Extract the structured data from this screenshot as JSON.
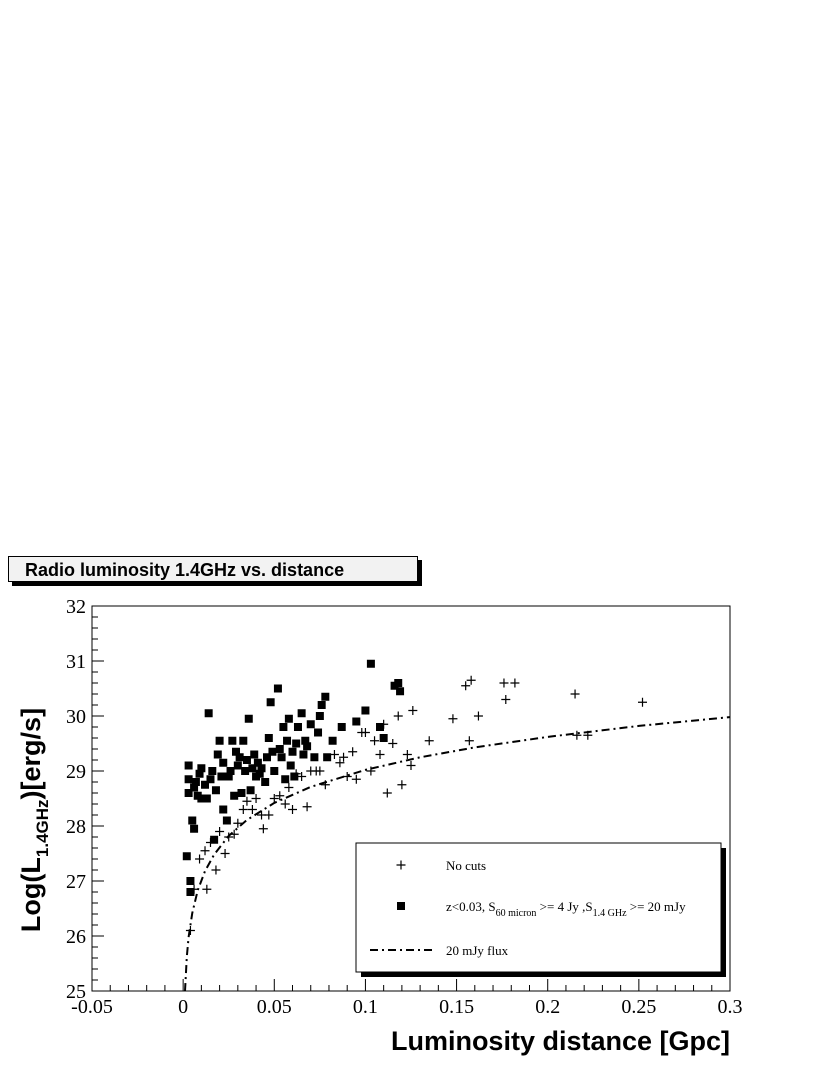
{
  "chart_data": {
    "type": "scatter",
    "title": "Radio luminosity   1.4GHz vs. distance",
    "xlabel": "Luminosity distance [Gpc]",
    "ylabel": {
      "main": "Log(L",
      "sub": "1.4GHz",
      "tail": ")[erg/s]"
    },
    "xlim": [
      -0.05,
      0.3
    ],
    "ylim": [
      25,
      32
    ],
    "x_ticks": [
      "-0.05",
      "0",
      "0.05",
      "0.1",
      "0.15",
      "0.2",
      "0.25",
      "0.3"
    ],
    "y_ticks": [
      "25",
      "26",
      "27",
      "28",
      "29",
      "30",
      "31",
      "32"
    ],
    "grid": false,
    "legend_position": "bottom-right",
    "legend": [
      {
        "marker": "plus",
        "text": "No cuts"
      },
      {
        "marker": "square",
        "parts": [
          "z<0.03, S",
          "60 micron",
          " >= 4 Jy ,S",
          "1.4 GHz",
          " >= 20 mJy"
        ]
      },
      {
        "marker": "dashdot",
        "text": "20 mJy flux"
      }
    ],
    "series": [
      {
        "marker": "plus",
        "points": [
          [
            0.004,
            26.1
          ],
          [
            0.006,
            26.85
          ],
          [
            0.009,
            27.4
          ],
          [
            0.012,
            27.55
          ],
          [
            0.013,
            26.85
          ],
          [
            0.015,
            27.7
          ],
          [
            0.018,
            27.2
          ],
          [
            0.02,
            27.9
          ],
          [
            0.023,
            27.5
          ],
          [
            0.025,
            27.8
          ],
          [
            0.028,
            27.85
          ],
          [
            0.03,
            28.05
          ],
          [
            0.033,
            28.3
          ],
          [
            0.035,
            28.45
          ],
          [
            0.038,
            28.3
          ],
          [
            0.04,
            28.5
          ],
          [
            0.043,
            28.2
          ],
          [
            0.044,
            27.95
          ],
          [
            0.047,
            28.2
          ],
          [
            0.05,
            28.5
          ],
          [
            0.053,
            28.55
          ],
          [
            0.056,
            28.4
          ],
          [
            0.058,
            28.7
          ],
          [
            0.06,
            28.3
          ],
          [
            0.062,
            28.95
          ],
          [
            0.065,
            28.9
          ],
          [
            0.068,
            28.35
          ],
          [
            0.07,
            29.0
          ],
          [
            0.073,
            29.0
          ],
          [
            0.075,
            29.0
          ],
          [
            0.078,
            28.75
          ],
          [
            0.083,
            29.3
          ],
          [
            0.086,
            29.15
          ],
          [
            0.088,
            29.25
          ],
          [
            0.09,
            28.9
          ],
          [
            0.093,
            29.35
          ],
          [
            0.095,
            28.85
          ],
          [
            0.098,
            29.7
          ],
          [
            0.1,
            29.7
          ],
          [
            0.103,
            29.0
          ],
          [
            0.105,
            29.55
          ],
          [
            0.108,
            29.3
          ],
          [
            0.11,
            29.85
          ],
          [
            0.112,
            28.6
          ],
          [
            0.115,
            29.5
          ],
          [
            0.118,
            30.0
          ],
          [
            0.12,
            28.75
          ],
          [
            0.123,
            29.3
          ],
          [
            0.125,
            29.1
          ],
          [
            0.126,
            30.1
          ],
          [
            0.135,
            29.55
          ],
          [
            0.148,
            29.95
          ],
          [
            0.155,
            30.55
          ],
          [
            0.157,
            29.55
          ],
          [
            0.158,
            30.65
          ],
          [
            0.162,
            30.0
          ],
          [
            0.176,
            30.6
          ],
          [
            0.177,
            30.3
          ],
          [
            0.182,
            30.6
          ],
          [
            0.215,
            30.4
          ],
          [
            0.216,
            29.65
          ],
          [
            0.222,
            29.65
          ],
          [
            0.252,
            30.25
          ]
        ]
      },
      {
        "marker": "square",
        "points": [
          [
            0.002,
            27.45
          ],
          [
            0.003,
            28.85
          ],
          [
            0.003,
            28.6
          ],
          [
            0.003,
            29.1
          ],
          [
            0.004,
            27.0
          ],
          [
            0.004,
            26.8
          ],
          [
            0.005,
            28.1
          ],
          [
            0.006,
            27.95
          ],
          [
            0.006,
            28.7
          ],
          [
            0.007,
            28.8
          ],
          [
            0.008,
            28.55
          ],
          [
            0.009,
            28.95
          ],
          [
            0.01,
            29.05
          ],
          [
            0.01,
            28.5
          ],
          [
            0.012,
            28.75
          ],
          [
            0.013,
            28.5
          ],
          [
            0.014,
            30.05
          ],
          [
            0.015,
            28.85
          ],
          [
            0.016,
            29.0
          ],
          [
            0.017,
            27.75
          ],
          [
            0.018,
            28.65
          ],
          [
            0.019,
            29.3
          ],
          [
            0.02,
            29.55
          ],
          [
            0.021,
            28.9
          ],
          [
            0.022,
            29.15
          ],
          [
            0.022,
            28.3
          ],
          [
            0.024,
            28.1
          ],
          [
            0.025,
            28.9
          ],
          [
            0.026,
            29.0
          ],
          [
            0.027,
            29.55
          ],
          [
            0.028,
            28.55
          ],
          [
            0.029,
            29.35
          ],
          [
            0.03,
            29.1
          ],
          [
            0.031,
            29.25
          ],
          [
            0.032,
            28.6
          ],
          [
            0.033,
            29.55
          ],
          [
            0.034,
            29.0
          ],
          [
            0.035,
            29.2
          ],
          [
            0.036,
            29.95
          ],
          [
            0.037,
            28.65
          ],
          [
            0.038,
            29.05
          ],
          [
            0.039,
            29.3
          ],
          [
            0.04,
            28.9
          ],
          [
            0.041,
            29.15
          ],
          [
            0.042,
            28.95
          ],
          [
            0.043,
            29.05
          ],
          [
            0.045,
            28.8
          ],
          [
            0.046,
            29.25
          ],
          [
            0.047,
            29.6
          ],
          [
            0.048,
            30.25
          ],
          [
            0.049,
            29.35
          ],
          [
            0.05,
            29.0
          ],
          [
            0.052,
            30.5
          ],
          [
            0.053,
            29.4
          ],
          [
            0.054,
            29.25
          ],
          [
            0.055,
            29.8
          ],
          [
            0.056,
            28.85
          ],
          [
            0.057,
            29.55
          ],
          [
            0.058,
            29.95
          ],
          [
            0.059,
            29.1
          ],
          [
            0.06,
            29.35
          ],
          [
            0.061,
            28.9
          ],
          [
            0.062,
            29.5
          ],
          [
            0.063,
            29.8
          ],
          [
            0.065,
            30.05
          ],
          [
            0.066,
            29.3
          ],
          [
            0.067,
            29.55
          ],
          [
            0.068,
            29.45
          ],
          [
            0.07,
            29.85
          ],
          [
            0.072,
            29.25
          ],
          [
            0.074,
            29.7
          ],
          [
            0.075,
            30.0
          ],
          [
            0.076,
            30.2
          ],
          [
            0.078,
            30.35
          ],
          [
            0.079,
            29.25
          ],
          [
            0.082,
            29.55
          ],
          [
            0.087,
            29.8
          ],
          [
            0.095,
            29.9
          ],
          [
            0.1,
            30.1
          ],
          [
            0.103,
            30.95
          ],
          [
            0.108,
            29.8
          ],
          [
            0.11,
            29.6
          ],
          [
            0.116,
            30.55
          ],
          [
            0.118,
            30.6
          ],
          [
            0.119,
            30.45
          ]
        ]
      },
      {
        "marker": "dashdot",
        "name": "20 mJy flux",
        "curve": [
          [
            0.001,
            25.0
          ],
          [
            0.002,
            25.62
          ],
          [
            0.003,
            25.98
          ],
          [
            0.005,
            26.42
          ],
          [
            0.008,
            26.83
          ],
          [
            0.012,
            27.18
          ],
          [
            0.017,
            27.48
          ],
          [
            0.025,
            27.82
          ],
          [
            0.035,
            28.11
          ],
          [
            0.05,
            28.42
          ],
          [
            0.07,
            28.71
          ],
          [
            0.1,
            29.02
          ],
          [
            0.13,
            29.25
          ],
          [
            0.16,
            29.43
          ],
          [
            0.2,
            29.62
          ],
          [
            0.25,
            29.82
          ],
          [
            0.3,
            29.98
          ]
        ]
      }
    ]
  }
}
